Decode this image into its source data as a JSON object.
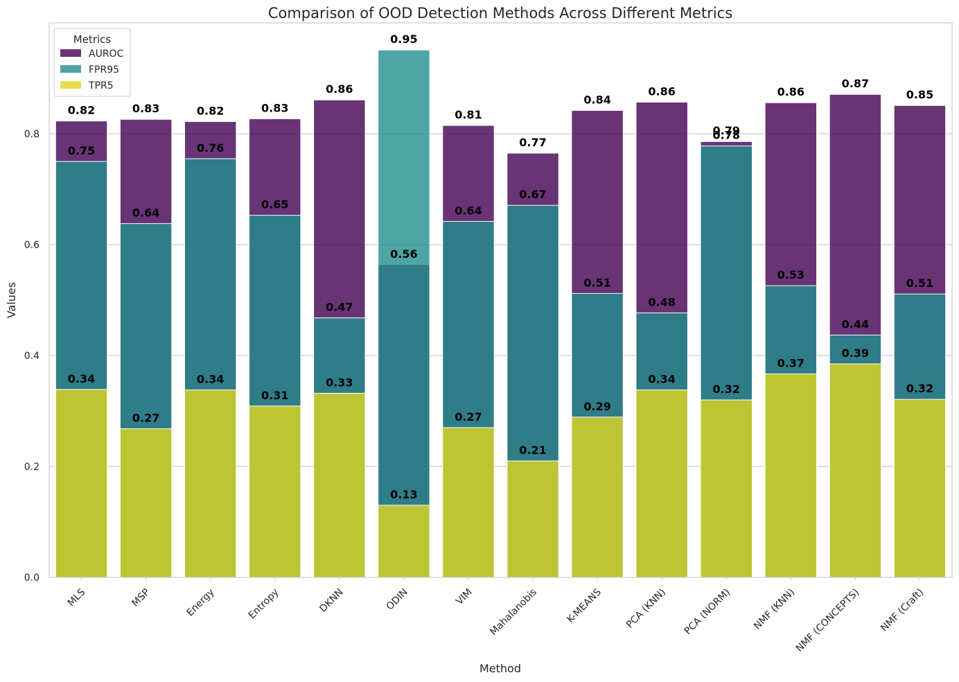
{
  "chart_data": {
    "type": "bar",
    "title": "Comparison of OOD Detection Methods Across Different Metrics",
    "xlabel": "Method",
    "ylabel": "Values",
    "ylim": [
      0,
      1.0
    ],
    "yticks": [
      "0.0",
      "0.2",
      "0.4",
      "0.6",
      "0.8"
    ],
    "grid": true,
    "legend": {
      "title": "Metrics",
      "placement": "top-left"
    },
    "categories": [
      "MLS",
      "MSP",
      "Energy",
      "Entropy",
      "DKNN",
      "ODIN",
      "VIM",
      "Mahalanobis",
      "K-MEANS",
      "PCA (KNN)",
      "PCA (NORM)",
      "NMF (KNN)",
      "NMF (CONCEPTS)",
      "NMF (Craft)"
    ],
    "series": [
      {
        "name": "AUROC",
        "color": "#440154",
        "values": [
          0.823,
          0.826,
          0.822,
          0.827,
          0.861,
          0.564,
          0.815,
          0.765,
          0.842,
          0.857,
          0.786,
          0.856,
          0.871,
          0.851
        ],
        "labels": [
          "0.82",
          "0.83",
          "0.82",
          "0.83",
          "0.86",
          "0.56",
          "0.81",
          "0.77",
          "0.84",
          "0.86",
          "0.79",
          "0.86",
          "0.87",
          "0.85"
        ]
      },
      {
        "name": "FPR95",
        "color": "#21908d",
        "values": [
          0.75,
          0.638,
          0.755,
          0.653,
          0.468,
          0.951,
          0.642,
          0.671,
          0.512,
          0.477,
          0.778,
          0.526,
          0.437,
          0.511
        ],
        "labels": [
          "0.75",
          "0.64",
          "0.76",
          "0.65",
          "0.47",
          "0.95",
          "0.64",
          "0.67",
          "0.51",
          "0.48",
          "0.78",
          "0.53",
          "0.44",
          "0.51"
        ]
      },
      {
        "name": "TPR5",
        "color": "#e0d71f",
        "values": [
          0.339,
          0.268,
          0.338,
          0.309,
          0.332,
          0.13,
          0.27,
          0.21,
          0.289,
          0.338,
          0.32,
          0.367,
          0.385,
          0.321
        ],
        "labels": [
          "0.34",
          "0.27",
          "0.34",
          "0.31",
          "0.33",
          "0.13",
          "0.27",
          "0.21",
          "0.29",
          "0.34",
          "0.32",
          "0.37",
          "0.39",
          "0.32"
        ]
      }
    ]
  }
}
